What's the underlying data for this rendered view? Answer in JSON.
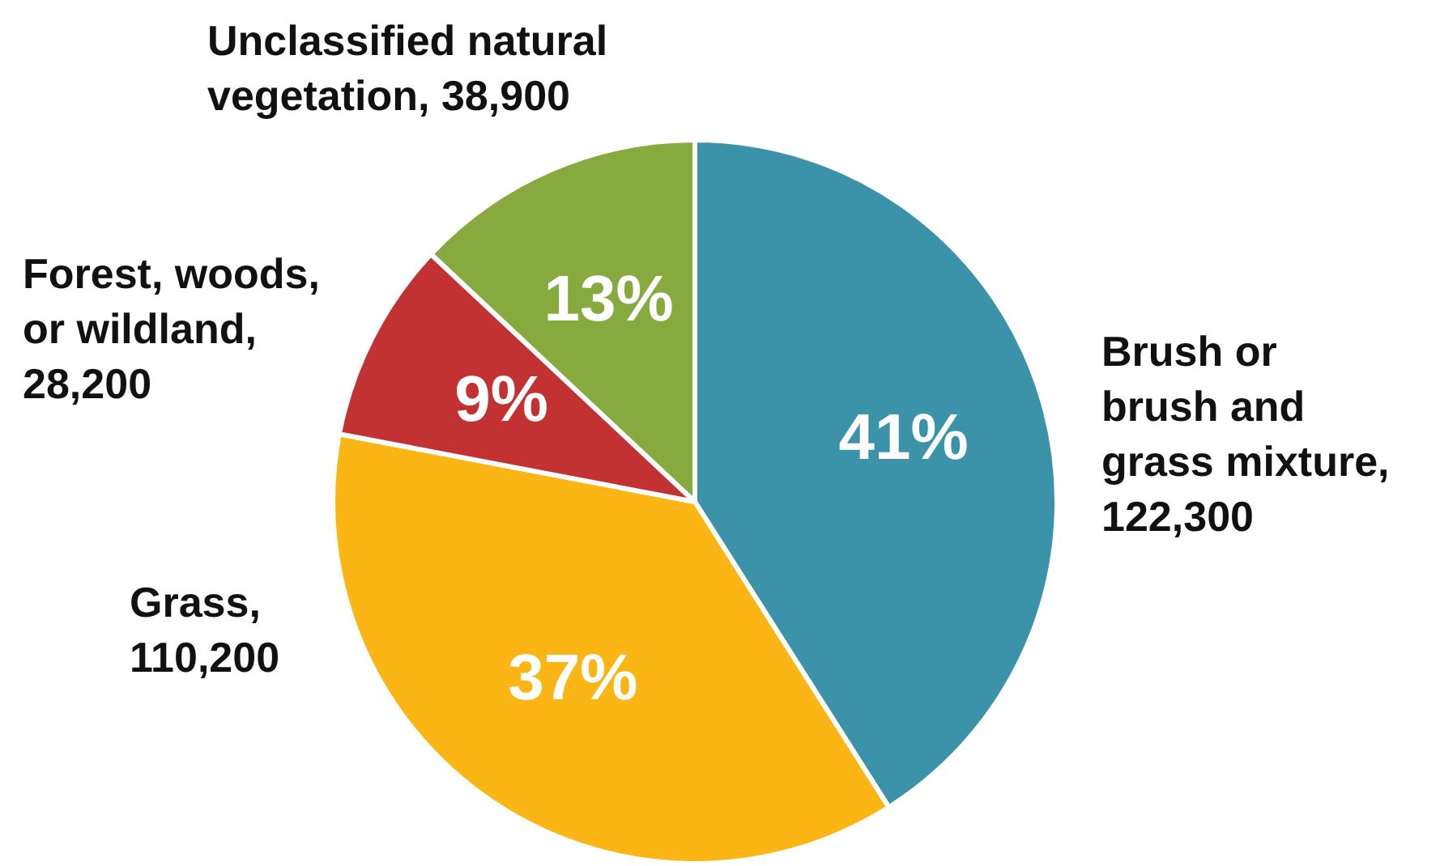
{
  "chart_data": {
    "type": "pie",
    "categories": [
      "Brush or brush and grass mixture, 122,300",
      "Grass, 110,200",
      "Forest, woods, or wildland, 28,200",
      "Unclassified natural vegetation, 38,900"
    ],
    "values": [
      41,
      37,
      9,
      13
    ],
    "colors": [
      "#3a93a8",
      "#fbb615",
      "#c33232",
      "#86aa3e"
    ],
    "value_labels": [
      "41%",
      "37%",
      "9%",
      "13%"
    ]
  }
}
